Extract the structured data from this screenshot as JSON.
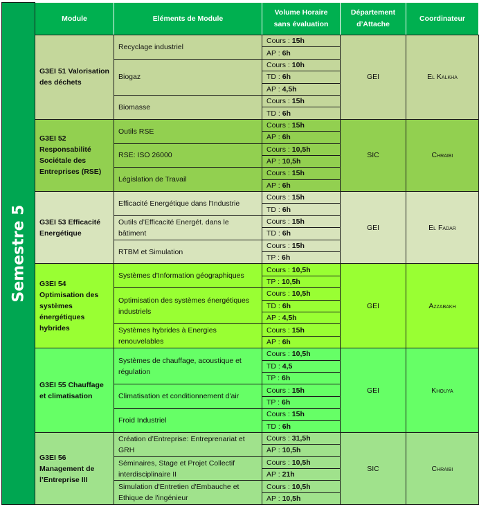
{
  "semester": "Semestre 5",
  "headers": [
    "Module",
    "Eléments de Module",
    "Volume Horaire sans évaluation",
    "Département d’Attache",
    "Coordinateur"
  ],
  "colors": {
    "header": "#00b050",
    "semester_bar": "#00a651"
  },
  "modules": [
    {
      "name": "G3EI 51 Valorisation des déchets",
      "color": "#c4d79b",
      "department": "GEI",
      "coordinator": "El Kalkha",
      "elements": [
        {
          "name": "Recyclage industriel",
          "hours": [
            [
              "Cours : ",
              "15h"
            ],
            [
              "AP : ",
              "6h"
            ]
          ]
        },
        {
          "name": "Biogaz",
          "hours": [
            [
              "Cours : ",
              "10h"
            ],
            [
              "TD : ",
              "6h"
            ],
            [
              "AP : ",
              "4,5h"
            ]
          ]
        },
        {
          "name": "Biomasse",
          "hours": [
            [
              "Cours : ",
              "15h"
            ],
            [
              "TD : ",
              "6h"
            ]
          ]
        }
      ]
    },
    {
      "name": "G3EI 52 Responsabilité Sociétale des Entreprises (RSE)",
      "color": "#92d050",
      "department": "SIC",
      "coordinator": "Chraibi",
      "elements": [
        {
          "name": "Outils RSE",
          "hours": [
            [
              "Cours : ",
              "15h"
            ],
            [
              "AP : ",
              "6h"
            ]
          ]
        },
        {
          "name": "RSE: ISO 26000",
          "hours": [
            [
              "Cours : ",
              "10,5h"
            ],
            [
              "AP : ",
              "10,5h"
            ]
          ]
        },
        {
          "name": "Législation de Travail",
          "hours": [
            [
              "Cours : ",
              "15h"
            ],
            [
              "AP : ",
              "6h"
            ]
          ]
        }
      ]
    },
    {
      "name": "G3EI 53 Efficacité Energétique",
      "color": "#d8e4bc",
      "department": "GEI",
      "coordinator": "El Fadar",
      "elements": [
        {
          "name": "Efficacité Energétique dans l'Industrie",
          "hours": [
            [
              "Cours : ",
              "15h"
            ],
            [
              "TD : ",
              "6h"
            ]
          ]
        },
        {
          "name": "Outils d’Efficacité Energét. dans le bâtiment",
          "hours": [
            [
              "Cours : ",
              "15h"
            ],
            [
              "TD : ",
              "6h"
            ]
          ]
        },
        {
          "name": "RTBM et Simulation",
          "hours": [
            [
              "Cours : ",
              "15h"
            ],
            [
              "TP : ",
              "6h"
            ]
          ]
        }
      ]
    },
    {
      "name": "G3EI 54 Optimisation des systèmes énergétiques hybrides",
      "color": "#99ff33",
      "department": "GEI",
      "coordinator": "Azzabakh",
      "elements": [
        {
          "name": "Systèmes d'Information géographiques",
          "hours": [
            [
              "Cours : ",
              "10,5h"
            ],
            [
              "TP : ",
              "10,5h"
            ]
          ]
        },
        {
          "name": "Optimisation des systèmes énergétiques industriels",
          "hours": [
            [
              "Cours : ",
              "10,5h"
            ],
            [
              "TD : ",
              "6h"
            ],
            [
              "AP : ",
              "4,5h"
            ]
          ]
        },
        {
          "name": "Systèmes hybrides à Energies renouvelables",
          "hours": [
            [
              "Cours : ",
              "15h"
            ],
            [
              "AP : ",
              "6h"
            ]
          ]
        }
      ]
    },
    {
      "name": "G3EI 55 Chauffage et climatisation",
      "color": "#66ff66",
      "department": "GEI",
      "coordinator": "Khouya",
      "elements": [
        {
          "name": "Systèmes de chauffage, acoustique et régulation",
          "hours": [
            [
              "Cours : ",
              "10,5h"
            ],
            [
              "TD : ",
              "4,5"
            ],
            [
              "TP : ",
              "6h"
            ]
          ]
        },
        {
          "name": "Climatisation et conditionnement d'air",
          "hours": [
            [
              "Cours : ",
              "15h"
            ],
            [
              "TP : ",
              "6h"
            ]
          ]
        },
        {
          "name": "Froid Industriel",
          "hours": [
            [
              "Cours : ",
              "15h"
            ],
            [
              "TD : ",
              "6h"
            ]
          ]
        }
      ]
    },
    {
      "name": "G3EI 56 Management de l’Entreprise III",
      "color": "#a0e28c",
      "department": "SIC",
      "coordinator": "Chraibi",
      "elements": [
        {
          "name": "Création d’Entreprise: Entreprenariat et GRH",
          "hours": [
            [
              "Cours : ",
              "31,5h"
            ],
            [
              "AP : ",
              "10,5h"
            ]
          ]
        },
        {
          "name": "Séminaires, Stage et Projet Collectif interdisciplinaire II",
          "hours": [
            [
              "Cours : ",
              "10,5h"
            ],
            [
              "AP : ",
              "21h"
            ]
          ]
        },
        {
          "name": "Simulation d'Entretien d'Embauche et Ethique de l'ingénieur",
          "hours": [
            [
              "Cours : ",
              "10,5h"
            ],
            [
              "AP : ",
              "10,5h"
            ]
          ]
        }
      ]
    }
  ]
}
